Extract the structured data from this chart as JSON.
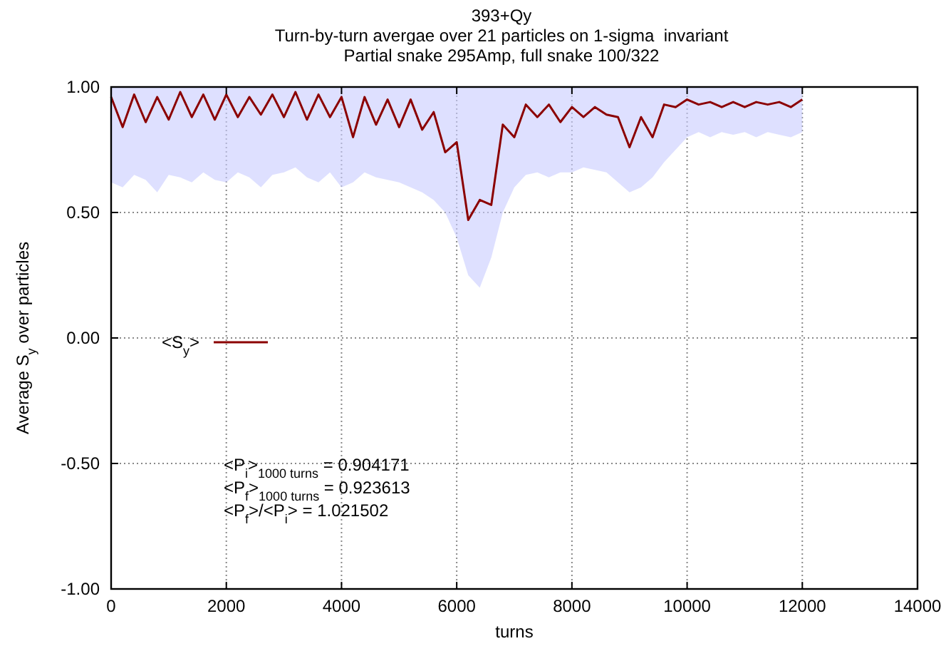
{
  "chart_data": {
    "type": "line",
    "title": "393+Qy",
    "subtitle": "Turn-by-turn avergae over 21 particles on 1-sigma  invariant\nPartial snake 295Amp, full snake 100/322",
    "xlabel": "turns",
    "ylabel": "Average S$_{y}$ over particles",
    "xlim": [
      0,
      14000
    ],
    "xticks": [
      0,
      2000,
      4000,
      6000,
      8000,
      10000,
      12000,
      14000
    ],
    "ylim": [
      -1,
      1
    ],
    "yticks": [
      {
        "value": -1,
        "label": "-1.00"
      },
      {
        "value": -0.5,
        "label": "-0.50"
      },
      {
        "value": 0,
        "label": "0.00"
      },
      {
        "value": 0.5,
        "label": "0.50"
      },
      {
        "value": 1,
        "label": "1.00"
      }
    ],
    "grid": true,
    "legend": "left",
    "marker": "none",
    "line_style": "solid",
    "annotations": [
      "<P$_{i}$>$_{1000 turns}$ = 0.904171",
      "<P$_{f}$>$_{1000 turns}$ = 0.923613",
      "<P$_{f}$>/<P$_{i}$> = 1.021502"
    ],
    "x": [
      0,
      200,
      400,
      600,
      800,
      1000,
      1200,
      1400,
      1600,
      1800,
      2000,
      2200,
      2400,
      2600,
      2800,
      3000,
      3200,
      3400,
      3600,
      3800,
      4000,
      4200,
      4400,
      4600,
      4800,
      5000,
      5200,
      5400,
      5600,
      5800,
      6000,
      6200,
      6400,
      6600,
      6800,
      7000,
      7200,
      7400,
      7600,
      7800,
      8000,
      8200,
      8400,
      8600,
      8800,
      9000,
      9200,
      9400,
      9600,
      9800,
      10000,
      10200,
      10400,
      10600,
      10800,
      11000,
      11200,
      11400,
      11600,
      11800,
      12000
    ],
    "series": [
      {
        "name": "<S$_{y}$>",
        "color": "#8b0000",
        "values": [
          0.96,
          0.84,
          0.97,
          0.86,
          0.96,
          0.87,
          0.98,
          0.88,
          0.97,
          0.87,
          0.97,
          0.88,
          0.96,
          0.89,
          0.97,
          0.88,
          0.98,
          0.87,
          0.97,
          0.88,
          0.96,
          0.8,
          0.96,
          0.85,
          0.95,
          0.84,
          0.95,
          0.83,
          0.9,
          0.74,
          0.78,
          0.47,
          0.55,
          0.53,
          0.85,
          0.8,
          0.93,
          0.88,
          0.93,
          0.86,
          0.92,
          0.88,
          0.92,
          0.89,
          0.88,
          0.76,
          0.88,
          0.8,
          0.93,
          0.92,
          0.95,
          0.93,
          0.94,
          0.92,
          0.94,
          0.92,
          0.94,
          0.93,
          0.94,
          0.92,
          0.95
        ],
        "lower": [
          0.62,
          0.6,
          0.65,
          0.63,
          0.58,
          0.65,
          0.64,
          0.62,
          0.66,
          0.63,
          0.62,
          0.66,
          0.64,
          0.6,
          0.65,
          0.66,
          0.68,
          0.64,
          0.62,
          0.66,
          0.6,
          0.62,
          0.66,
          0.64,
          0.63,
          0.62,
          0.6,
          0.58,
          0.55,
          0.5,
          0.4,
          0.25,
          0.2,
          0.32,
          0.5,
          0.6,
          0.65,
          0.66,
          0.64,
          0.66,
          0.66,
          0.68,
          0.67,
          0.66,
          0.62,
          0.58,
          0.6,
          0.64,
          0.7,
          0.75,
          0.8,
          0.82,
          0.8,
          0.82,
          0.81,
          0.82,
          0.8,
          0.82,
          0.81,
          0.8,
          0.82
        ],
        "upper": [
          1,
          1,
          1,
          1,
          1,
          1,
          1,
          1,
          1,
          1,
          1,
          1,
          1,
          1,
          1,
          1,
          1,
          1,
          1,
          1,
          1,
          1,
          1,
          1,
          1,
          1,
          1,
          1,
          1,
          1,
          1,
          1,
          1,
          1,
          1,
          1,
          1,
          1,
          1,
          1,
          1,
          1,
          1,
          1,
          1,
          1,
          1,
          1,
          1,
          1,
          1,
          1,
          1,
          1,
          1,
          1,
          1,
          1,
          1,
          1,
          1
        ]
      }
    ]
  }
}
